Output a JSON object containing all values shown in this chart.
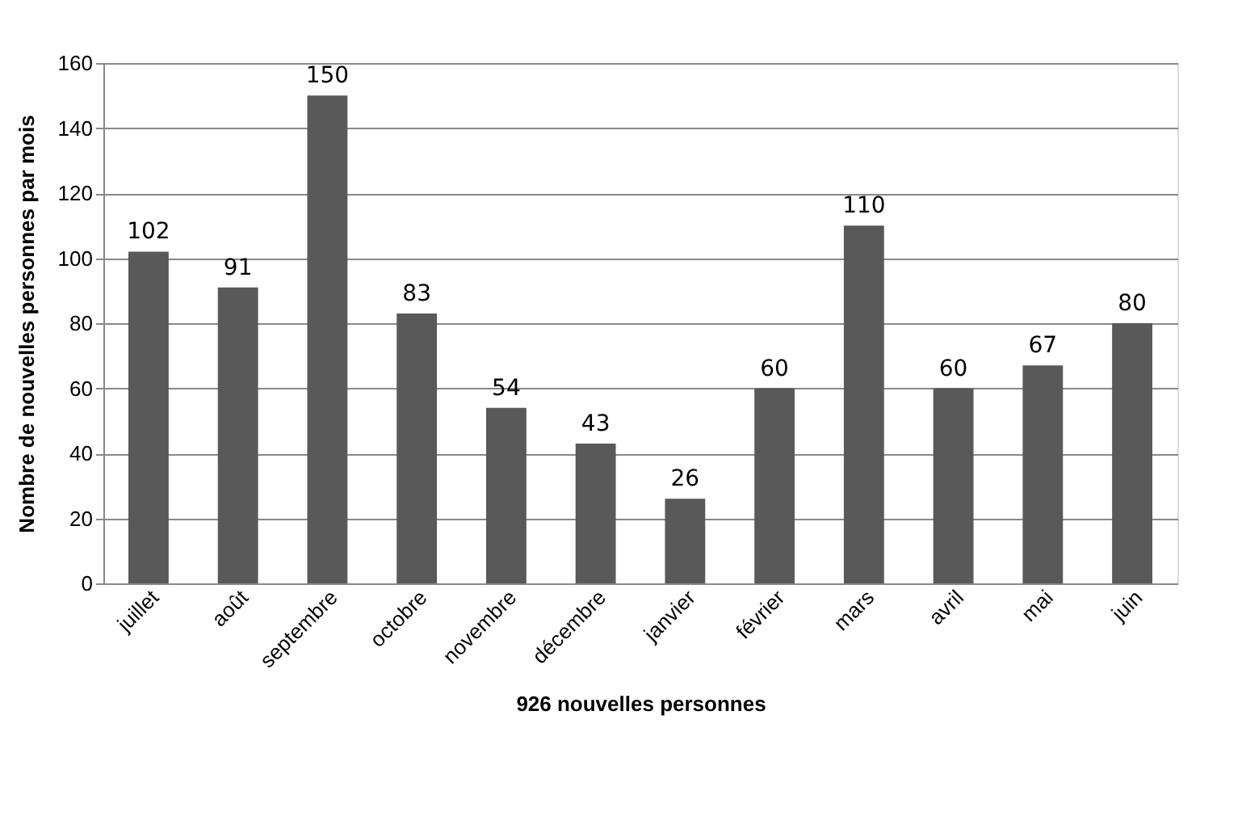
{
  "chart_data": {
    "type": "bar",
    "xlabel": "926 nouvelles personnes",
    "ylabel": "Nombre de nouvelles personnes par mois",
    "categories": [
      "juillet",
      "août",
      "septembre",
      "octobre",
      "novembre",
      "décembre",
      "janvier",
      "février",
      "mars",
      "avril",
      "mai",
      "juin"
    ],
    "values": [
      102,
      91,
      150,
      83,
      54,
      43,
      26,
      60,
      110,
      60,
      67,
      80
    ],
    "color": "#595959",
    "ylim": [
      0,
      160
    ],
    "yticks": [
      0,
      20,
      40,
      60,
      80,
      100,
      120,
      140,
      160
    ],
    "grid": "y",
    "data_labels": true
  }
}
